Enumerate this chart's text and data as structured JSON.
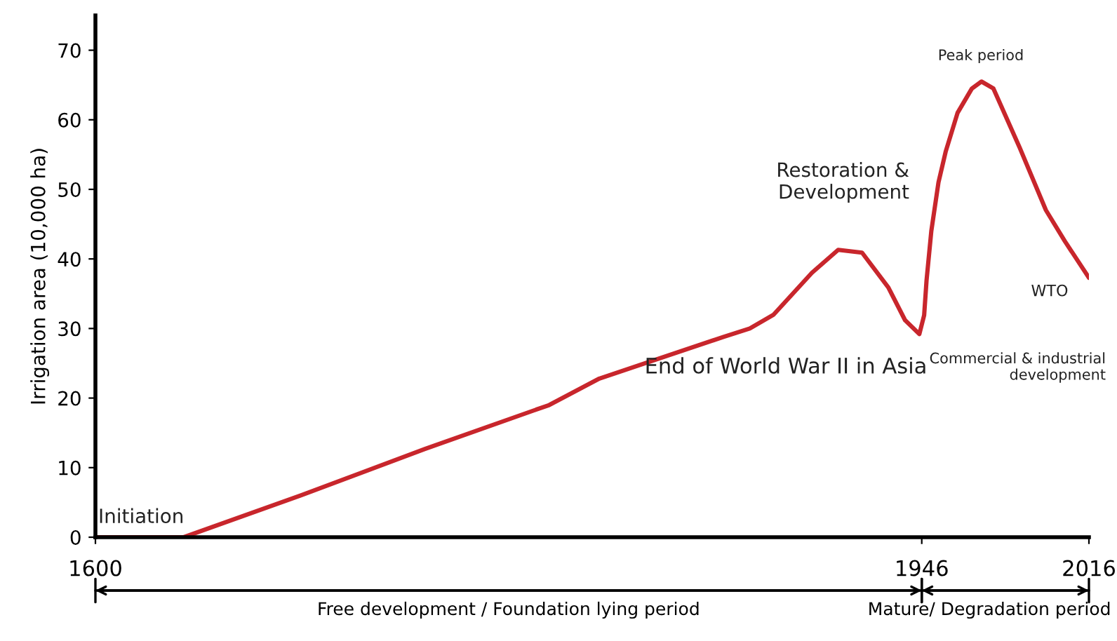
{
  "chart_data": {
    "type": "line",
    "ylabel": "Irrigation area (10,000 ha)",
    "x": [
      1600,
      1637,
      1686,
      1738,
      1790,
      1811,
      1863,
      1874,
      1884,
      1900,
      1911,
      1921,
      1932,
      1939,
      1945,
      1947,
      1948,
      1950,
      1953,
      1956,
      1961,
      1967,
      1971,
      1976,
      1987,
      1998,
      2006,
      2016
    ],
    "series": [
      {
        "color": "#c8262c",
        "values": [
          0,
          0,
          6,
          12.7,
          19,
          22.8,
          28.8,
          30,
          32,
          38,
          41.3,
          40.9,
          35.9,
          31.2,
          29.2,
          31.9,
          36.9,
          44,
          51,
          55.4,
          61,
          64.5,
          65.5,
          64.5,
          56,
          47,
          42.5,
          37.3
        ]
      }
    ],
    "xlim": [
      1600,
      2016
    ],
    "xticks": [
      1600,
      1946,
      2016
    ],
    "ylim": [
      0,
      75
    ],
    "yticks": [
      0,
      10,
      20,
      30,
      40,
      50,
      60,
      70
    ],
    "grid": false,
    "legend": false,
    "marker": "none",
    "line_style": "solid",
    "annotations": [
      "Initiation",
      "End of World War II in Asia",
      "Restoration &\nDevelopment",
      "Peak period",
      "Commercial & industrial\ndevelopment",
      "WTO",
      "Free development / Foundation lying period",
      "Mature/ Degradation period"
    ]
  }
}
